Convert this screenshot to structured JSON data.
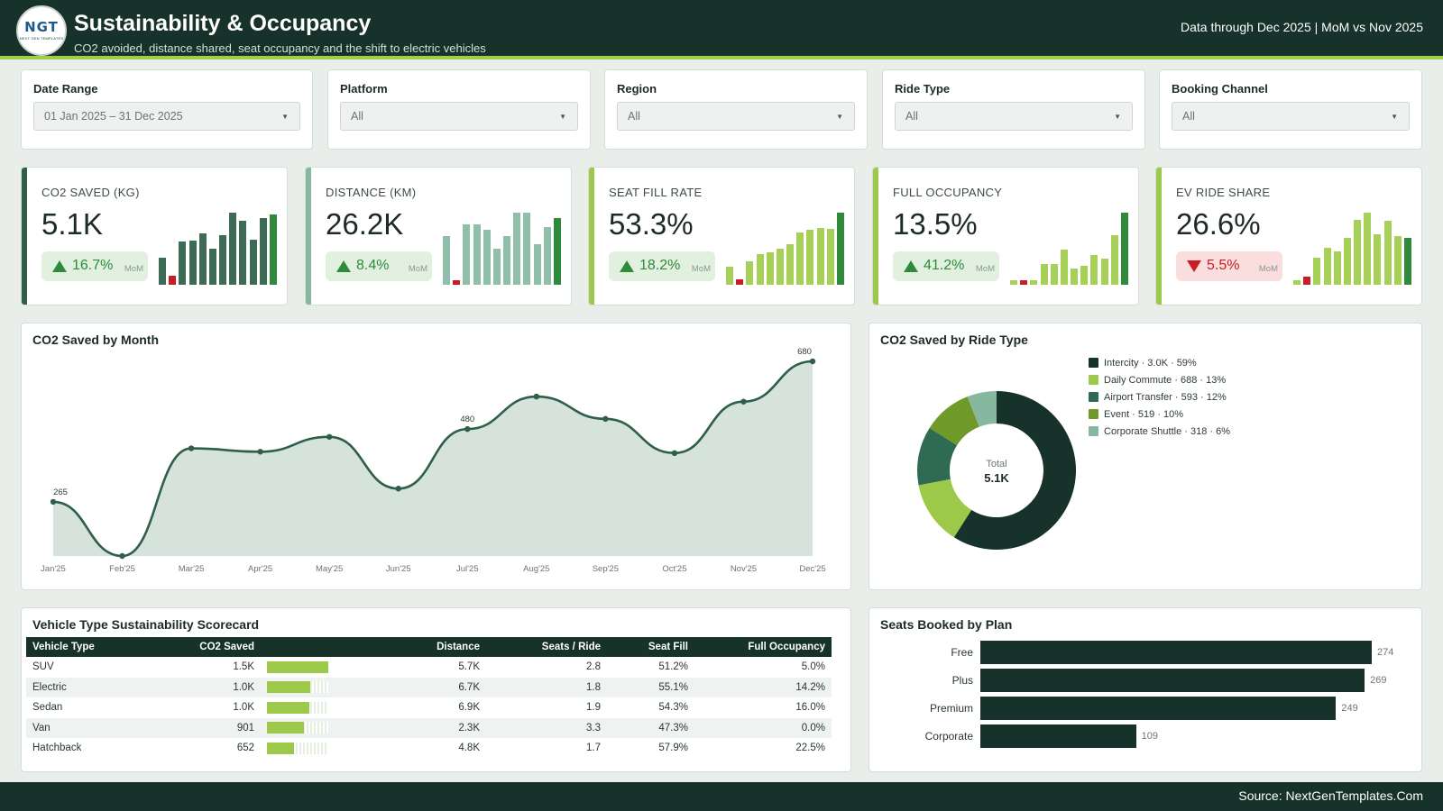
{
  "header": {
    "logo_text": "NGT",
    "logo_tagline": "NEXT GEN TEMPLATES",
    "title": "Sustainability & Occupancy",
    "subtitle": "CO2 avoided, distance shared, seat occupancy and the shift to electric vehicles",
    "data_note": "Data through Dec 2025 | MoM vs Nov 2025"
  },
  "filters": [
    {
      "label": "Date Range",
      "value": "01 Jan 2025 – 31 Dec 2025"
    },
    {
      "label": "Platform",
      "value": "All"
    },
    {
      "label": "Region",
      "value": "All"
    },
    {
      "label": "Ride Type",
      "value": "All"
    },
    {
      "label": "Booking Channel",
      "value": "All"
    }
  ],
  "kpis": [
    {
      "label": "CO2 SAVED (KG)",
      "value": "5.1K",
      "delta": "16.7%",
      "direction": "up",
      "period": "MoM",
      "accent": "#2f5f48",
      "bar_color": "#3d6b55",
      "spark": [
        265,
        90,
        420,
        430,
        500,
        350,
        480,
        700,
        620,
        440,
        650,
        680
      ]
    },
    {
      "label": "DISTANCE (KM)",
      "value": "26.2K",
      "delta": "8.4%",
      "direction": "up",
      "period": "MoM",
      "accent": "#86b8a0",
      "bar_color": "#8fbfa8",
      "spark": [
        1700,
        90,
        2100,
        2100,
        1900,
        1250,
        1700,
        2500,
        2500,
        1400,
        2000,
        2300
      ]
    },
    {
      "label": "SEAT FILL RATE",
      "value": "53.3%",
      "delta": "18.2%",
      "direction": "up",
      "period": "MoM",
      "accent": "#9cc94a",
      "bar_color": "#a6d058",
      "spark": [
        20,
        6,
        26,
        34,
        36,
        40,
        45,
        58,
        61,
        63,
        62,
        80
      ]
    },
    {
      "label": "FULL OCCUPANCY",
      "value": "13.5%",
      "delta": "41.2%",
      "direction": "up",
      "period": "MoM",
      "accent": "#9cc94a",
      "bar_color": "#a6d058",
      "spark": [
        4,
        3,
        4,
        24,
        24,
        40,
        18,
        22,
        34,
        30,
        56,
        82
      ]
    },
    {
      "label": "EV RIDE SHARE",
      "value": "26.6%",
      "delta": "5.5%",
      "direction": "down",
      "period": "MoM",
      "accent": "#9cc94a",
      "bar_color": "#a6d058",
      "spark": [
        5,
        10,
        32,
        44,
        40,
        56,
        77,
        86,
        60,
        76,
        58,
        56
      ]
    }
  ],
  "co2_by_month": {
    "title": "CO2 Saved by Month",
    "chart_data": {
      "type": "area",
      "x": [
        "Jan'25",
        "Feb'25",
        "Mar'25",
        "Apr'25",
        "May'25",
        "Jun'25",
        "Jul'25",
        "Aug'25",
        "Sep'25",
        "Oct'25",
        "Nov'25",
        "Dec'25"
      ],
      "values": [
        265,
        105,
        423,
        413,
        457,
        304,
        480,
        576,
        510,
        409,
        561,
        680
      ],
      "data_labels": {
        "Jan'25": "265",
        "Jul'25": "480",
        "Dec'25": "680"
      },
      "ylim": [
        105,
        680
      ]
    }
  },
  "co2_by_ride_type": {
    "title": "CO2 Saved by Ride Type",
    "total_label": "Total",
    "total_value": "5.1K",
    "chart_data": {
      "type": "pie",
      "slices": [
        {
          "name": "Intercity",
          "value": 3.0,
          "pct": 59,
          "color": "#17322a",
          "legend": "Intercity · 3.0K · 59%"
        },
        {
          "name": "Daily Commute",
          "value": 688,
          "pct": 13,
          "color": "#9cc94a",
          "legend": "Daily Commute · 688 · 13%"
        },
        {
          "name": "Airport Transfer",
          "value": 593,
          "pct": 12,
          "color": "#2f6b52",
          "legend": "Airport Transfer · 593 · 12%"
        },
        {
          "name": "Event",
          "value": 519,
          "pct": 10,
          "color": "#6f9a2a",
          "legend": "Event · 519 · 10%"
        },
        {
          "name": "Corporate Shuttle",
          "value": 318,
          "pct": 6,
          "color": "#86b8a0",
          "legend": "Corporate Shuttle · 318 · 6%"
        }
      ]
    }
  },
  "scorecard": {
    "title": "Vehicle Type Sustainability Scorecard",
    "columns": [
      "Vehicle Type",
      "CO2 Saved",
      "Distance",
      "Seats / Ride",
      "Seat Fill",
      "Full Occupancy"
    ],
    "chart_data": {
      "type": "table",
      "rows": [
        {
          "vehicle": "SUV",
          "co2": "1.5K",
          "co2_value": 1500,
          "distance": "5.7K",
          "seats": "2.8",
          "fill": "51.2%",
          "full": "5.0%"
        },
        {
          "vehicle": "Electric",
          "co2": "1.0K",
          "co2_value": 1050,
          "distance": "6.7K",
          "seats": "1.8",
          "fill": "55.1%",
          "full": "14.2%"
        },
        {
          "vehicle": "Sedan",
          "co2": "1.0K",
          "co2_value": 1040,
          "distance": "6.9K",
          "seats": "1.9",
          "fill": "54.3%",
          "full": "16.0%"
        },
        {
          "vehicle": "Van",
          "co2": "901",
          "co2_value": 901,
          "distance": "2.3K",
          "seats": "3.3",
          "fill": "47.3%",
          "full": "0.0%"
        },
        {
          "vehicle": "Hatchback",
          "co2": "652",
          "co2_value": 652,
          "distance": "4.8K",
          "seats": "1.7",
          "fill": "57.9%",
          "full": "22.5%"
        }
      ],
      "bar_max": 1500
    }
  },
  "seats_by_plan": {
    "title": "Seats Booked by Plan",
    "chart_data": {
      "type": "bar",
      "orientation": "horizontal",
      "categories": [
        "Free",
        "Plus",
        "Premium",
        "Corporate"
      ],
      "values": [
        274,
        269,
        249,
        109
      ],
      "xlim": [
        0,
        274
      ]
    }
  },
  "footer": {
    "source": "Source: NextGenTemplates.Com"
  }
}
